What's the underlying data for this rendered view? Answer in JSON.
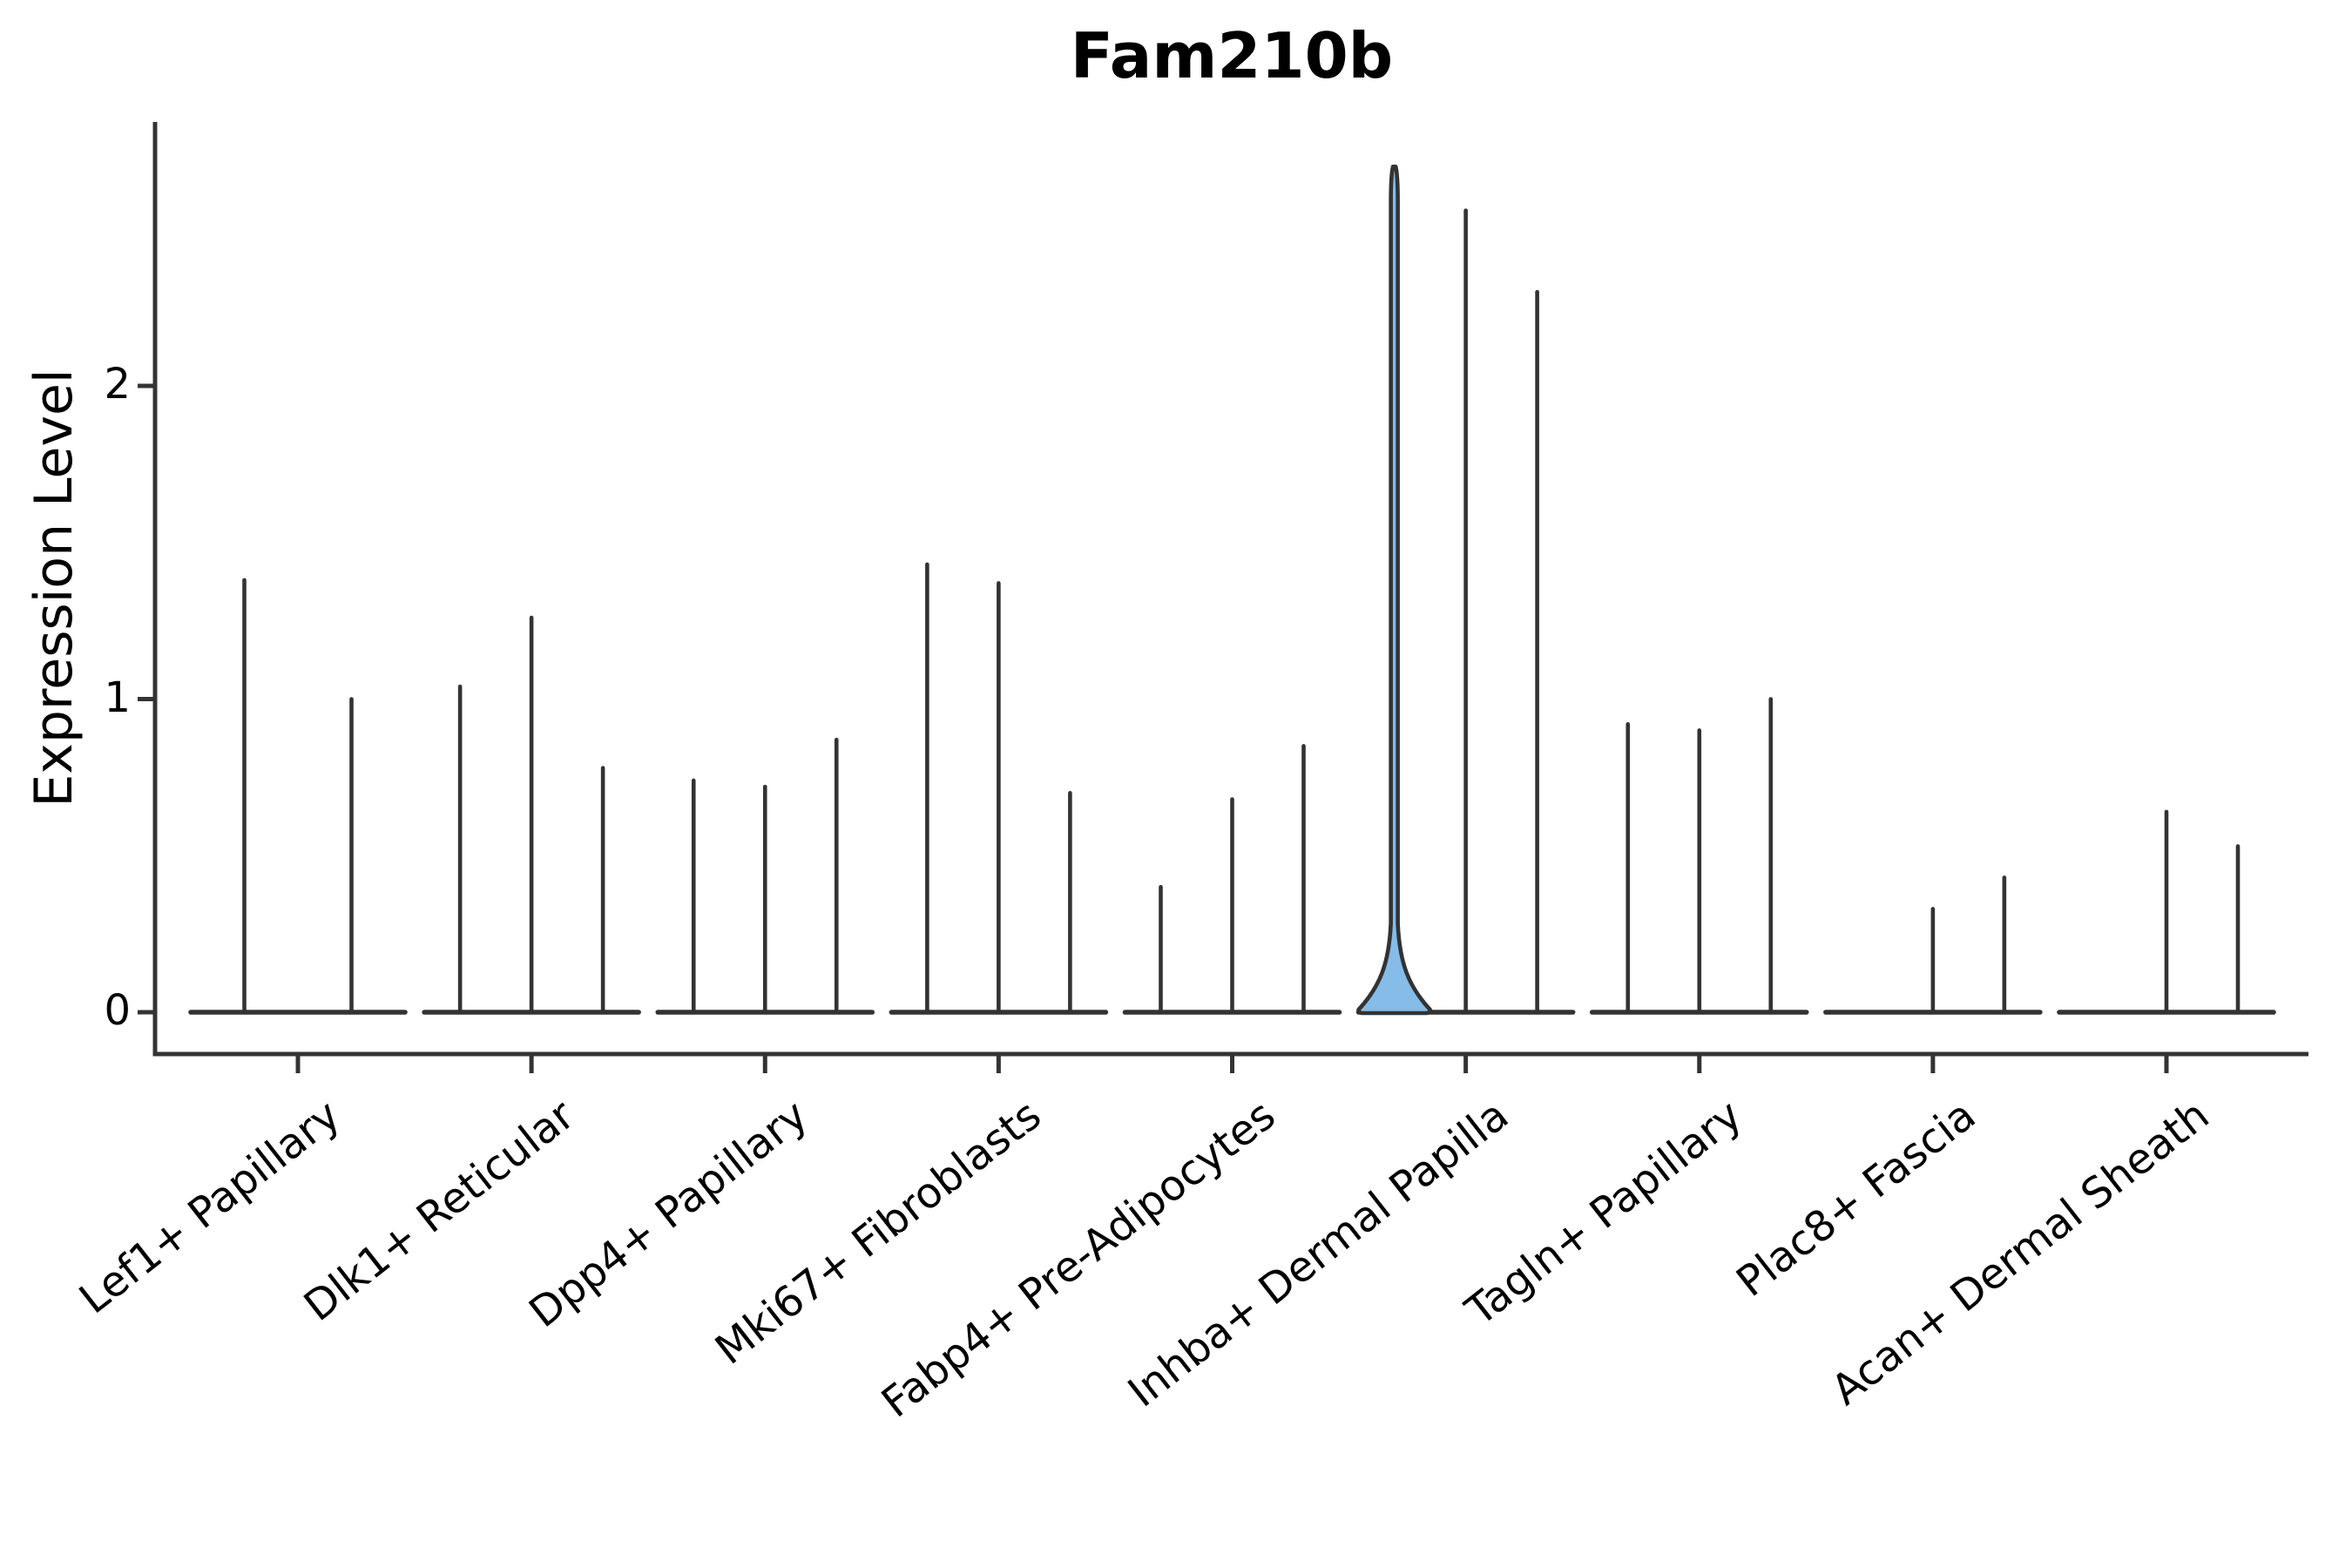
{
  "title": "Fam210b",
  "chart_data": {
    "type": "violin",
    "title": "Fam210b",
    "xlabel": "",
    "ylabel": "Expression Level",
    "yticks": [
      "0",
      "1",
      "2"
    ],
    "ylim": [
      -0.13,
      2.84
    ],
    "grid": false,
    "legend_position": "none",
    "line_color": "#333333",
    "highlight_fill_color": "#85BCE8",
    "background_color": "#ffffff",
    "categories": [
      "Lef1+ Papillary",
      "Dlk1+ Reticular",
      "Dpp4+ Papillary",
      "Mki67+ Fibroblasts",
      "Fabp4+ Pre-Adipocytes",
      "Inhba+ Dermal Papilla",
      "Tagln+ Papillary",
      "Plac8+ Fascia",
      "Acan+ Dermal Sheath"
    ],
    "groups": [
      {
        "label": "Lef1+ Papillary",
        "violins": [
          {
            "dx": -61.5,
            "max": 1.38,
            "filled": false
          },
          {
            "dx": 61.5,
            "max": 1.0,
            "filled": false
          }
        ]
      },
      {
        "label": "Dlk1+ Reticular",
        "violins": [
          {
            "dx": -82,
            "max": 1.04,
            "filled": false
          },
          {
            "dx": 0,
            "max": 1.26,
            "filled": false
          },
          {
            "dx": 82,
            "max": 0.78,
            "filled": false
          }
        ]
      },
      {
        "label": "Dpp4+ Papillary",
        "violins": [
          {
            "dx": -82,
            "max": 0.74,
            "filled": false
          },
          {
            "dx": 0,
            "max": 0.72,
            "filled": false
          },
          {
            "dx": 82,
            "max": 0.87,
            "filled": false
          }
        ]
      },
      {
        "label": "Mki67+ Fibroblasts",
        "violins": [
          {
            "dx": -82,
            "max": 1.43,
            "filled": false
          },
          {
            "dx": 0,
            "max": 1.37,
            "filled": false
          },
          {
            "dx": 82,
            "max": 0.7,
            "filled": false
          }
        ]
      },
      {
        "label": "Fabp4+ Pre-Adipocytes",
        "violins": [
          {
            "dx": -82,
            "max": 0.4,
            "filled": false
          },
          {
            "dx": 0,
            "max": 0.68,
            "filled": false
          },
          {
            "dx": 82,
            "max": 0.85,
            "filled": false
          }
        ]
      },
      {
        "label": "Inhba+ Dermal Papilla",
        "violins": [
          {
            "dx": -82,
            "max": 2.7,
            "filled": true
          },
          {
            "dx": 0,
            "max": 2.56,
            "filled": false
          },
          {
            "dx": 82,
            "max": 2.3,
            "filled": false
          }
        ]
      },
      {
        "label": "Tagln+ Papillary",
        "violins": [
          {
            "dx": -82,
            "max": 0.92,
            "filled": false
          },
          {
            "dx": 0,
            "max": 0.9,
            "filled": false
          },
          {
            "dx": 82,
            "max": 1.0,
            "filled": false
          }
        ]
      },
      {
        "label": "Plac8+ Fascia",
        "violins": [
          {
            "dx": -82,
            "max": 0.0,
            "filled": false
          },
          {
            "dx": 0,
            "max": 0.33,
            "filled": false
          },
          {
            "dx": 82,
            "max": 0.43,
            "filled": false
          }
        ]
      },
      {
        "label": "Acan+ Dermal Sheath",
        "violins": [
          {
            "dx": -82,
            "max": 0.0,
            "filled": false
          },
          {
            "dx": 0,
            "max": 0.64,
            "filled": false
          },
          {
            "dx": 82,
            "max": 0.53,
            "filled": false
          }
        ]
      }
    ]
  }
}
